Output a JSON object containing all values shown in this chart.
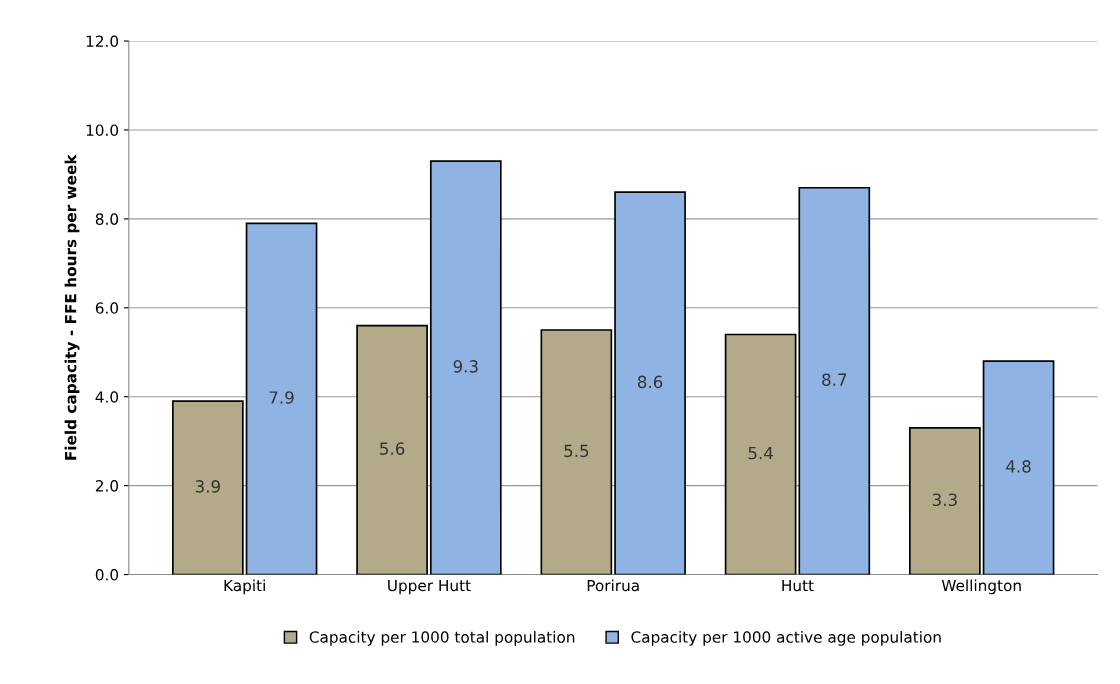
{
  "chart_data": {
    "type": "bar",
    "ylabel": "Field capacity - FFE hours per week",
    "categories": [
      "Kapiti",
      "Upper Hutt",
      "Porirua",
      "Hutt",
      "Wellington"
    ],
    "series": [
      {
        "name": "Capacity per 1000 total population",
        "color": "#b3aa8a",
        "values": [
          3.9,
          5.6,
          5.5,
          5.4,
          3.3
        ]
      },
      {
        "name": "Capacity per 1000 active age population",
        "color": "#8fb4e3",
        "values": [
          7.9,
          9.3,
          8.6,
          8.7,
          4.8
        ]
      }
    ],
    "ylim": [
      0,
      12
    ],
    "yticks": [
      {
        "value": 0,
        "label": "0.0"
      },
      {
        "value": 2,
        "label": "2.0"
      },
      {
        "value": 4,
        "label": "4.0"
      },
      {
        "value": 6,
        "label": "6.0"
      },
      {
        "value": 8,
        "label": "8.0"
      },
      {
        "value": 10,
        "label": "10.0"
      },
      {
        "value": 12,
        "label": "12.0"
      }
    ],
    "grid": "y",
    "legend": "bottom",
    "data_labels": true
  }
}
